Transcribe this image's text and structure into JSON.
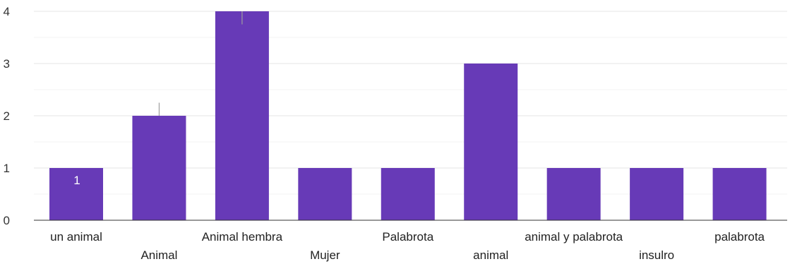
{
  "chart_data": {
    "type": "bar",
    "categories": [
      "un animal",
      "Animal",
      "Animal hembra",
      "Mujer",
      "Palabrota",
      "animal",
      "animal y palabrota",
      "insulro",
      "palabrota"
    ],
    "values": [
      1,
      2,
      4,
      1,
      1,
      3,
      1,
      1,
      1
    ],
    "data_labels": [
      "1",
      "",
      "",
      "",
      "",
      "",
      "",
      "",
      ""
    ],
    "y_ticks": [
      "0",
      "1",
      "2",
      "3",
      "4"
    ],
    "ylim": [
      0,
      4
    ],
    "grid": true,
    "bar_color": "#673ab7",
    "title": "",
    "xlabel": "",
    "ylabel": ""
  }
}
